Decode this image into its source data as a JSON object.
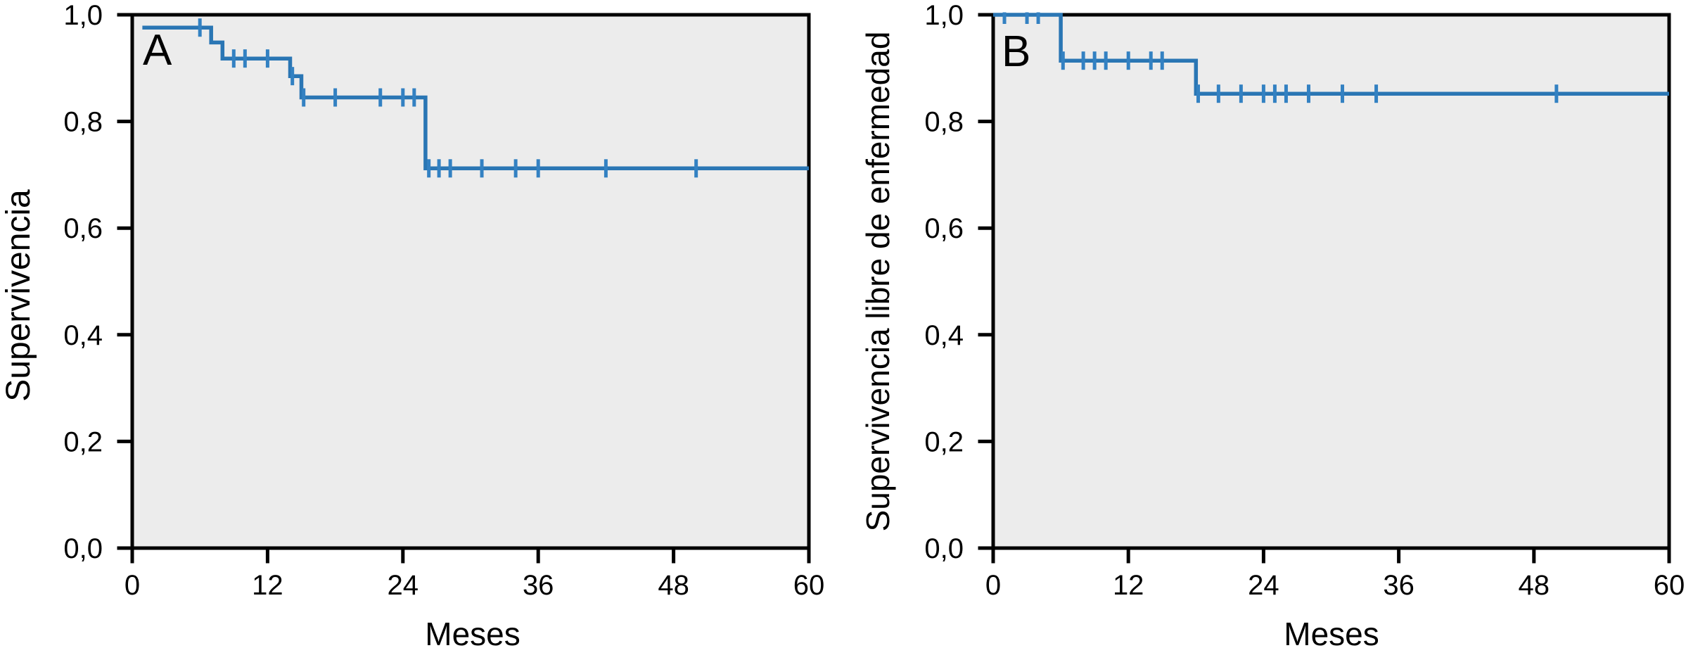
{
  "chart_data": [
    {
      "type": "line",
      "subtype": "kaplan_meier_step",
      "panel_label": "A",
      "title": "",
      "xlabel": "Meses",
      "ylabel": "Supervivencia",
      "xlim": [
        0,
        60
      ],
      "ylim": [
        0.0,
        1.0
      ],
      "xtick_values": [
        0,
        12,
        24,
        36,
        48,
        60
      ],
      "xtick_labels": [
        "0",
        "12",
        "24",
        "36",
        "48",
        "60"
      ],
      "ytick_values": [
        0.0,
        0.2,
        0.4,
        0.6,
        0.8,
        1.0
      ],
      "ytick_labels": [
        "0,0",
        "0,2",
        "0,4",
        "0,6",
        "0,8",
        "1,0"
      ],
      "grid": false,
      "legend": false,
      "line_color": "#2a76b4",
      "censor_color": "#3381c2",
      "plot_background": "#ececec",
      "frame_color": "#000000",
      "curve_start_t": 0.9,
      "curve_end_t": 60,
      "steps": [
        {
          "t": 0.9,
          "s": 0.976
        },
        {
          "t": 7,
          "s": 0.948
        },
        {
          "t": 8,
          "s": 0.918
        },
        {
          "t": 14,
          "s": 0.885
        },
        {
          "t": 15,
          "s": 0.845
        },
        {
          "t": 26,
          "s": 0.712
        }
      ],
      "censors": [
        {
          "t": 6,
          "s": 0.976
        },
        {
          "t": 9,
          "s": 0.918
        },
        {
          "t": 10,
          "s": 0.918
        },
        {
          "t": 12,
          "s": 0.918
        },
        {
          "t": 14.2,
          "s": 0.885
        },
        {
          "t": 15.2,
          "s": 0.845
        },
        {
          "t": 18,
          "s": 0.845
        },
        {
          "t": 22,
          "s": 0.845
        },
        {
          "t": 24,
          "s": 0.845
        },
        {
          "t": 25,
          "s": 0.845
        },
        {
          "t": 26.3,
          "s": 0.712
        },
        {
          "t": 27.2,
          "s": 0.712
        },
        {
          "t": 28.2,
          "s": 0.712
        },
        {
          "t": 31,
          "s": 0.712
        },
        {
          "t": 34,
          "s": 0.712
        },
        {
          "t": 36,
          "s": 0.712
        },
        {
          "t": 42,
          "s": 0.712
        },
        {
          "t": 50,
          "s": 0.712
        }
      ]
    },
    {
      "type": "line",
      "subtype": "kaplan_meier_step",
      "panel_label": "B",
      "title": "",
      "xlabel": "Meses",
      "ylabel": "Supervivencia libre de enfermedad",
      "xlim": [
        0,
        60
      ],
      "ylim": [
        0.0,
        1.0
      ],
      "xtick_values": [
        0,
        12,
        24,
        36,
        48,
        60
      ],
      "xtick_labels": [
        "0",
        "12",
        "24",
        "36",
        "48",
        "60"
      ],
      "ytick_values": [
        0.0,
        0.2,
        0.4,
        0.6,
        0.8,
        1.0
      ],
      "ytick_labels": [
        "0,0",
        "0,2",
        "0,4",
        "0,6",
        "0,8",
        "1,0"
      ],
      "grid": false,
      "legend": false,
      "line_color": "#2a76b4",
      "censor_color": "#3381c2",
      "plot_background": "#ececec",
      "frame_color": "#000000",
      "curve_start_t": 0,
      "curve_end_t": 60,
      "steps": [
        {
          "t": 0,
          "s": 1.0
        },
        {
          "t": 6,
          "s": 0.914
        },
        {
          "t": 18,
          "s": 0.852
        }
      ],
      "censors": [
        {
          "t": 1,
          "s": 1.0
        },
        {
          "t": 3,
          "s": 1.0
        },
        {
          "t": 4,
          "s": 1.0
        },
        {
          "t": 6.2,
          "s": 0.914
        },
        {
          "t": 8,
          "s": 0.914
        },
        {
          "t": 9,
          "s": 0.914
        },
        {
          "t": 10,
          "s": 0.914
        },
        {
          "t": 12,
          "s": 0.914
        },
        {
          "t": 14,
          "s": 0.914
        },
        {
          "t": 15,
          "s": 0.914
        },
        {
          "t": 18.2,
          "s": 0.852
        },
        {
          "t": 20,
          "s": 0.852
        },
        {
          "t": 22,
          "s": 0.852
        },
        {
          "t": 24,
          "s": 0.852
        },
        {
          "t": 25,
          "s": 0.852
        },
        {
          "t": 26,
          "s": 0.852
        },
        {
          "t": 28,
          "s": 0.852
        },
        {
          "t": 31,
          "s": 0.852
        },
        {
          "t": 34,
          "s": 0.852
        },
        {
          "t": 50,
          "s": 0.852
        }
      ]
    }
  ]
}
